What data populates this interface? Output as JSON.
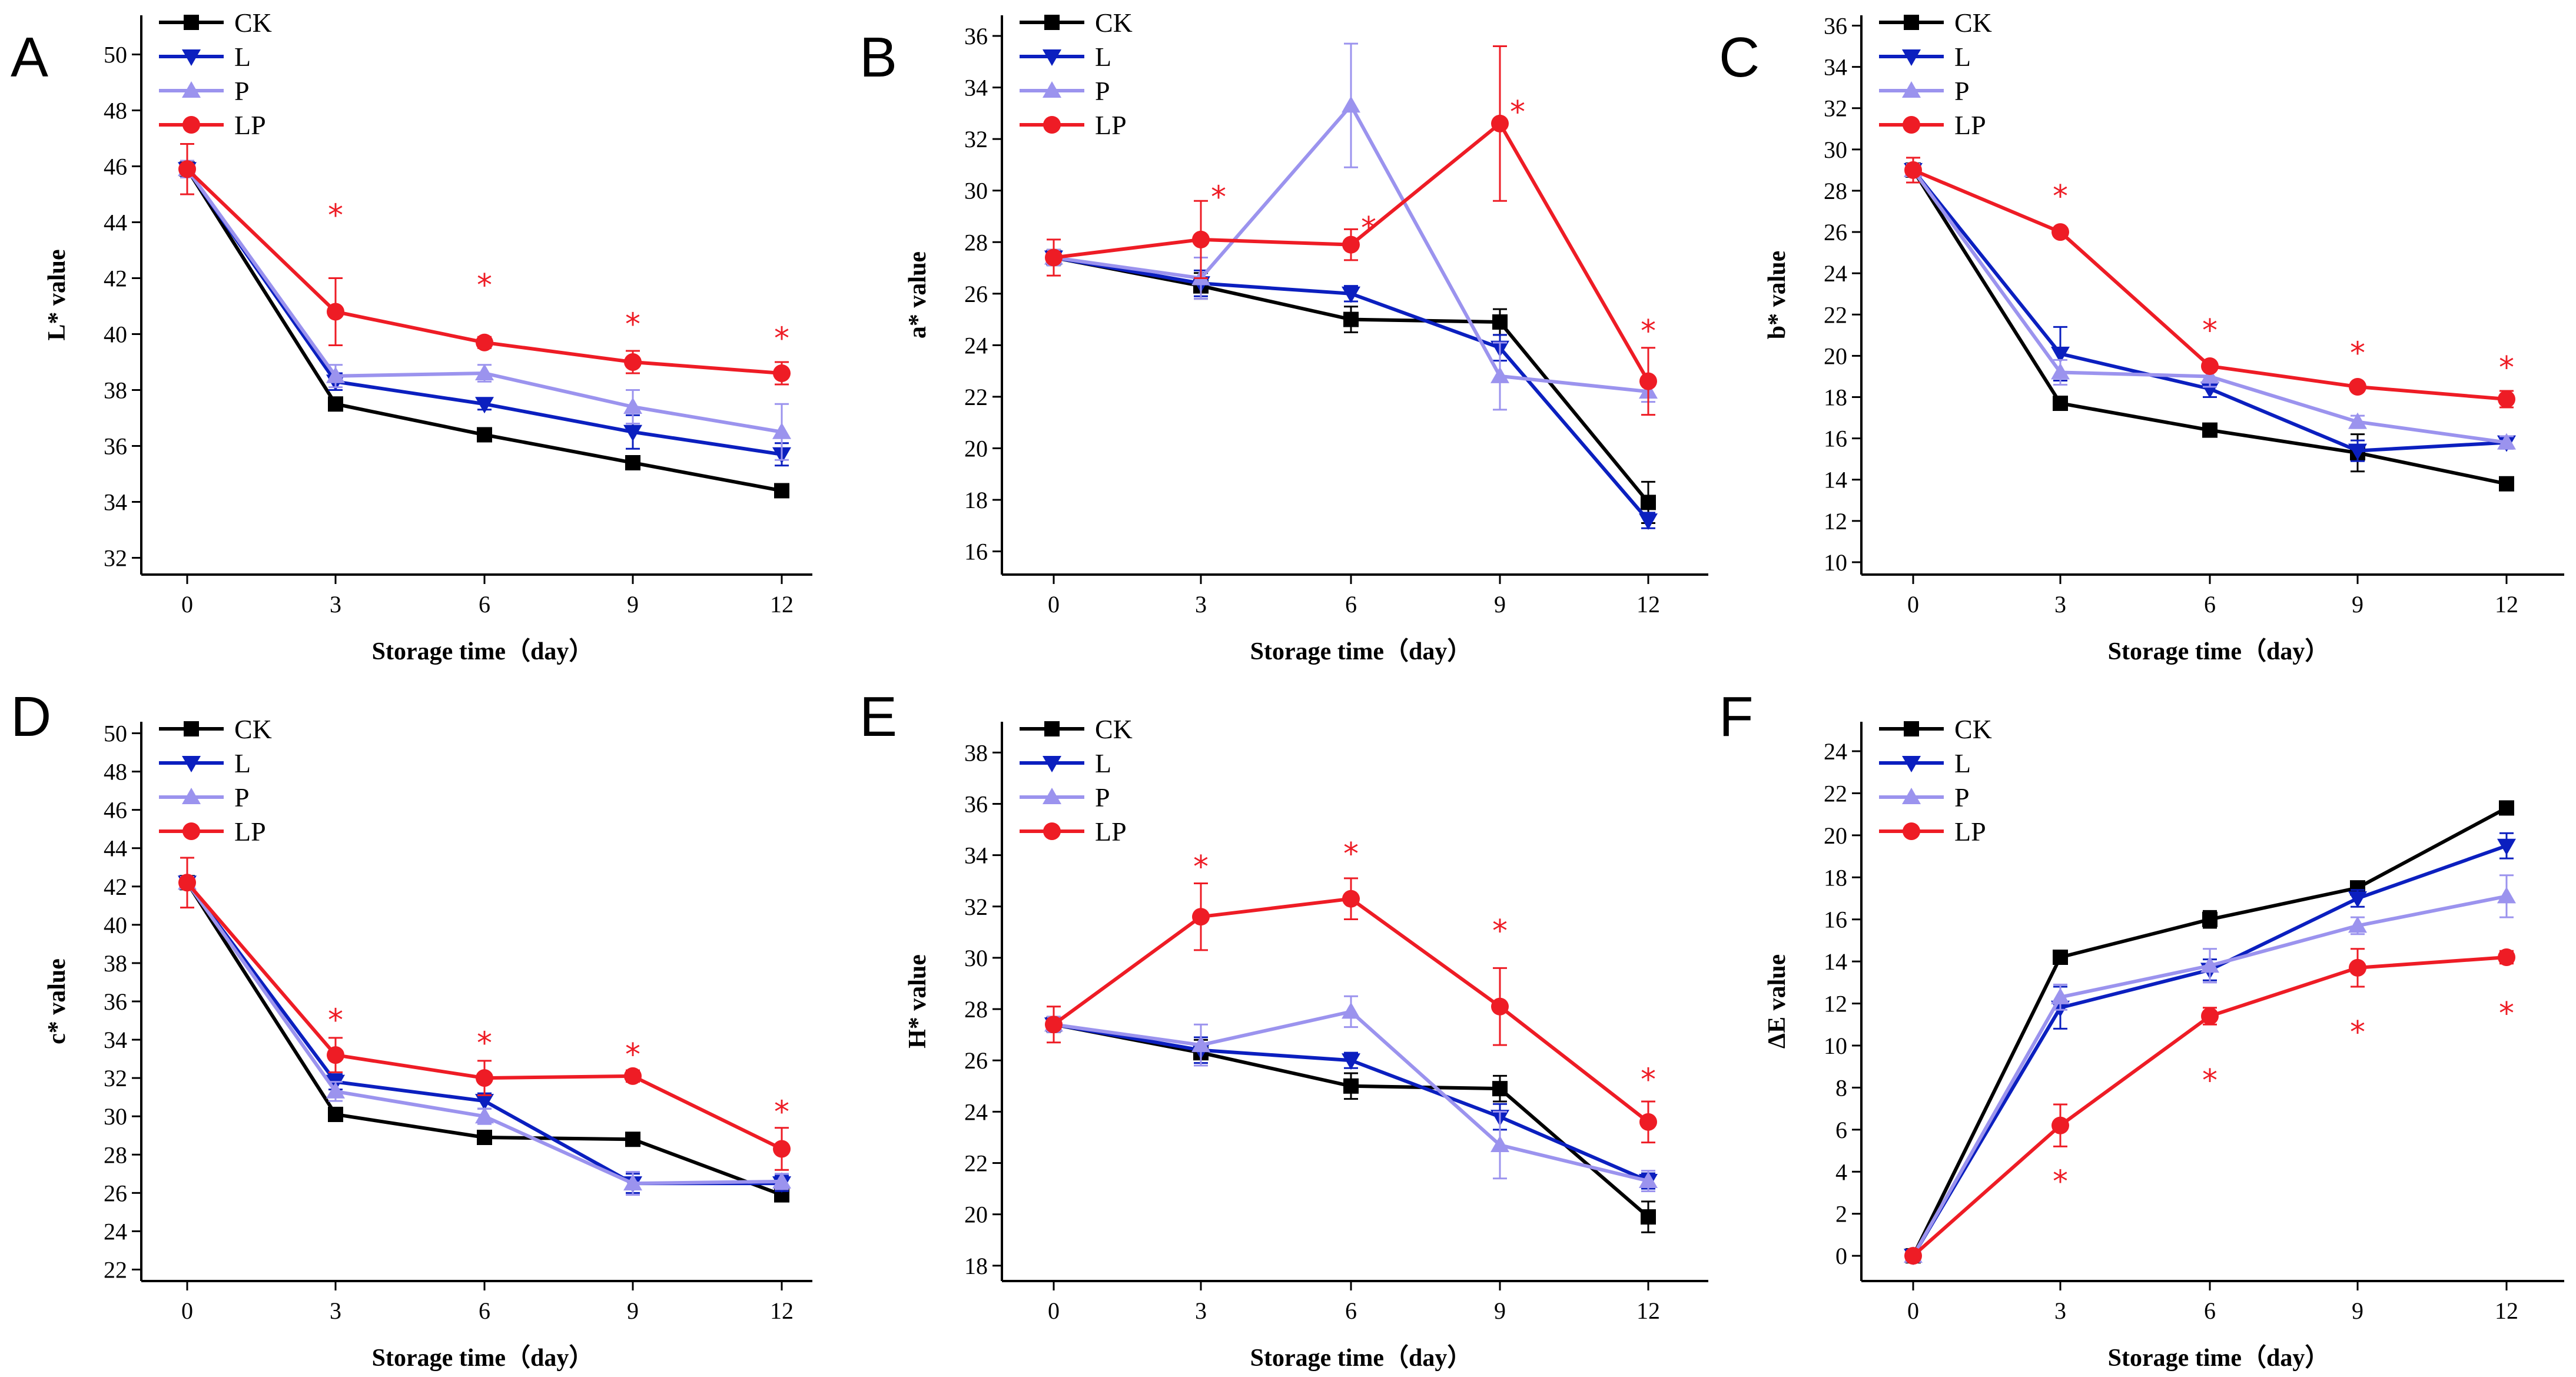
{
  "figure": {
    "panel_labels": [
      "A",
      "B",
      "C",
      "D",
      "E",
      "F"
    ],
    "series_colors": {
      "CK": "#000000",
      "L": "#0b1fbf",
      "P": "#9b93ee",
      "LP": "#ee1c25"
    },
    "significance_marker": "*"
  },
  "chart_data": [
    {
      "panel": "A",
      "type": "line",
      "xlabel": "Storage time（day）",
      "ylabel": "L* value",
      "x": [
        0,
        3,
        6,
        9,
        12
      ],
      "ylim": [
        31.4,
        51.4
      ],
      "yticks": [
        32,
        34,
        36,
        38,
        40,
        42,
        44,
        46,
        48,
        50
      ],
      "legend": [
        "CK",
        "L",
        "P",
        "LP"
      ],
      "series": [
        {
          "name": "CK",
          "marker": "square",
          "values": [
            45.9,
            37.5,
            36.4,
            35.4,
            34.4
          ],
          "errors": [
            0.3,
            0.2,
            0.15,
            0.2,
            0.15
          ]
        },
        {
          "name": "L",
          "marker": "triangle-down",
          "values": [
            45.9,
            38.3,
            37.5,
            36.5,
            35.7
          ],
          "errors": [
            0.3,
            0.3,
            0.2,
            0.6,
            0.4
          ]
        },
        {
          "name": "P",
          "marker": "triangle-up",
          "values": [
            45.9,
            38.5,
            38.6,
            37.4,
            36.5
          ],
          "errors": [
            0.3,
            0.4,
            0.3,
            0.6,
            1.0
          ]
        },
        {
          "name": "LP",
          "marker": "circle",
          "values": [
            45.9,
            40.8,
            39.7,
            39.0,
            38.6
          ],
          "errors": [
            0.9,
            1.2,
            0.2,
            0.4,
            0.4
          ]
        }
      ],
      "significance_x": [
        3,
        6,
        9,
        12
      ],
      "significance_y": [
        44.3,
        41.8,
        40.4,
        39.9
      ]
    },
    {
      "panel": "B",
      "type": "line",
      "xlabel": "Storage time（day）",
      "ylabel": "a* value",
      "x": [
        0,
        3,
        6,
        9,
        12
      ],
      "ylim": [
        15.1,
        36.8
      ],
      "yticks": [
        16,
        18,
        20,
        22,
        24,
        26,
        28,
        30,
        32,
        34,
        36
      ],
      "legend": [
        "CK",
        "L",
        "P",
        "LP"
      ],
      "series": [
        {
          "name": "CK",
          "marker": "square",
          "values": [
            27.4,
            26.3,
            25.0,
            24.9,
            17.9
          ],
          "errors": [
            0.3,
            0.5,
            0.5,
            0.5,
            0.8
          ]
        },
        {
          "name": "L",
          "marker": "triangle-down",
          "values": [
            27.4,
            26.4,
            26.0,
            23.9,
            17.2
          ],
          "errors": [
            0.3,
            0.5,
            0.3,
            0.5,
            0.3
          ]
        },
        {
          "name": "P",
          "marker": "triangle-up",
          "values": [
            27.4,
            26.6,
            33.3,
            22.8,
            22.2
          ],
          "errors": [
            0.3,
            0.8,
            2.4,
            1.3,
            0.4
          ]
        },
        {
          "name": "LP",
          "marker": "circle",
          "values": [
            27.4,
            28.1,
            27.9,
            32.6,
            22.6
          ],
          "errors": [
            0.7,
            1.5,
            0.6,
            3.0,
            1.3
          ]
        }
      ],
      "significance_x": [
        3,
        6,
        9,
        12
      ],
      "significance_y": [
        29.8,
        28.6,
        33.1,
        24.6
      ]
    },
    {
      "panel": "C",
      "type": "line",
      "xlabel": "Storage time（day）",
      "ylabel": "b* value",
      "x": [
        0,
        3,
        6,
        9,
        12
      ],
      "ylim": [
        9.4,
        36.5
      ],
      "yticks": [
        10,
        12,
        14,
        16,
        18,
        20,
        22,
        24,
        26,
        28,
        30,
        32,
        34,
        36
      ],
      "legend": [
        "CK",
        "L",
        "P",
        "LP"
      ],
      "series": [
        {
          "name": "CK",
          "marker": "square",
          "values": [
            29.0,
            17.7,
            16.4,
            15.3,
            13.8
          ],
          "errors": [
            0.3,
            0.2,
            0.15,
            0.9,
            0.15
          ]
        },
        {
          "name": "L",
          "marker": "triangle-down",
          "values": [
            29.0,
            20.1,
            18.4,
            15.4,
            15.8
          ],
          "errors": [
            0.3,
            1.3,
            0.4,
            0.5,
            0.3
          ]
        },
        {
          "name": "P",
          "marker": "triangle-up",
          "values": [
            29.0,
            19.2,
            19.0,
            16.8,
            15.8
          ],
          "errors": [
            0.3,
            0.6,
            0.5,
            0.3,
            0.3
          ]
        },
        {
          "name": "LP",
          "marker": "circle",
          "values": [
            29.0,
            26.0,
            19.5,
            18.5,
            17.9
          ],
          "errors": [
            0.6,
            0.2,
            0.2,
            0.2,
            0.4
          ]
        }
      ],
      "significance_x": [
        3,
        6,
        9,
        12
      ],
      "significance_y": [
        27.8,
        21.3,
        20.2,
        19.5
      ]
    },
    {
      "panel": "D",
      "type": "line",
      "xlabel": "Storage time（day）",
      "ylabel": "c* value",
      "x": [
        0,
        3,
        6,
        9,
        12
      ],
      "ylim": [
        21.4,
        50.6
      ],
      "yticks": [
        22,
        24,
        26,
        28,
        30,
        32,
        34,
        36,
        38,
        40,
        42,
        44,
        46,
        48,
        50
      ],
      "legend": [
        "CK",
        "L",
        "P",
        "LP"
      ],
      "series": [
        {
          "name": "CK",
          "marker": "square",
          "values": [
            42.2,
            30.1,
            28.9,
            28.8,
            25.9
          ],
          "errors": [
            0.3,
            0.2,
            0.2,
            0.2,
            0.2
          ]
        },
        {
          "name": "L",
          "marker": "triangle-down",
          "values": [
            42.2,
            31.8,
            30.8,
            26.5,
            26.5
          ],
          "errors": [
            0.3,
            0.4,
            0.4,
            0.5,
            0.4
          ]
        },
        {
          "name": "P",
          "marker": "triangle-up",
          "values": [
            42.2,
            31.3,
            30.0,
            26.5,
            26.6
          ],
          "errors": [
            0.3,
            0.5,
            0.4,
            0.6,
            0.4
          ]
        },
        {
          "name": "LP",
          "marker": "circle",
          "values": [
            42.2,
            33.2,
            32.0,
            32.1,
            28.3
          ],
          "errors": [
            1.3,
            0.9,
            0.9,
            0.3,
            1.1
          ]
        }
      ],
      "significance_x": [
        3,
        6,
        9,
        12
      ],
      "significance_y": [
        35.1,
        33.9,
        33.3,
        30.3
      ]
    },
    {
      "panel": "E",
      "type": "line",
      "xlabel": "Storage time（day）",
      "ylabel": "H* value",
      "x": [
        0,
        3,
        6,
        9,
        12
      ],
      "ylim": [
        17.4,
        39.2
      ],
      "yticks": [
        18,
        20,
        22,
        24,
        26,
        28,
        30,
        32,
        34,
        36,
        38
      ],
      "legend": [
        "CK",
        "L",
        "P",
        "LP"
      ],
      "series": [
        {
          "name": "CK",
          "marker": "square",
          "values": [
            27.4,
            26.3,
            25.0,
            24.9,
            19.9
          ],
          "errors": [
            0.3,
            0.5,
            0.5,
            0.5,
            0.6
          ]
        },
        {
          "name": "L",
          "marker": "triangle-down",
          "values": [
            27.4,
            26.4,
            26.0,
            23.8,
            21.3
          ],
          "errors": [
            0.3,
            0.5,
            0.3,
            0.5,
            0.3
          ]
        },
        {
          "name": "P",
          "marker": "triangle-up",
          "values": [
            27.4,
            26.6,
            27.9,
            22.7,
            21.3
          ],
          "errors": [
            0.3,
            0.8,
            0.6,
            1.3,
            0.4
          ]
        },
        {
          "name": "LP",
          "marker": "circle",
          "values": [
            27.4,
            31.6,
            32.3,
            28.1,
            23.6
          ],
          "errors": [
            0.7,
            1.3,
            0.8,
            1.5,
            0.8
          ]
        }
      ],
      "significance_x": [
        3,
        6,
        9,
        12
      ],
      "significance_y": [
        33.6,
        34.1,
        31.1,
        25.3
      ]
    },
    {
      "panel": "F",
      "type": "line",
      "xlabel": "Storage time（day）",
      "ylabel": "ΔE value",
      "x": [
        0,
        3,
        6,
        9,
        12
      ],
      "ylim": [
        -1.2,
        25.4
      ],
      "yticks": [
        0,
        2,
        4,
        6,
        8,
        10,
        12,
        14,
        16,
        18,
        20,
        22,
        24
      ],
      "legend": [
        "CK",
        "L",
        "P",
        "LP"
      ],
      "series": [
        {
          "name": "CK",
          "marker": "square",
          "values": [
            0.0,
            14.2,
            16.0,
            17.5,
            21.3
          ],
          "errors": [
            0.1,
            0.2,
            0.4,
            0.3,
            0.2
          ]
        },
        {
          "name": "L",
          "marker": "triangle-down",
          "values": [
            0.0,
            11.8,
            13.6,
            17.0,
            19.5
          ],
          "errors": [
            0.1,
            1.0,
            0.5,
            0.4,
            0.6
          ]
        },
        {
          "name": "P",
          "marker": "triangle-up",
          "values": [
            0.0,
            12.3,
            13.8,
            15.7,
            17.1
          ],
          "errors": [
            0.1,
            0.6,
            0.8,
            0.4,
            1.0
          ]
        },
        {
          "name": "LP",
          "marker": "circle",
          "values": [
            0.0,
            6.2,
            11.4,
            13.7,
            14.2
          ],
          "errors": [
            0.1,
            1.0,
            0.4,
            0.9,
            0.3
          ]
        }
      ],
      "significance_x": [
        3,
        6,
        9,
        12
      ],
      "significance_y": [
        3.6,
        8.4,
        10.7,
        11.6
      ]
    }
  ]
}
